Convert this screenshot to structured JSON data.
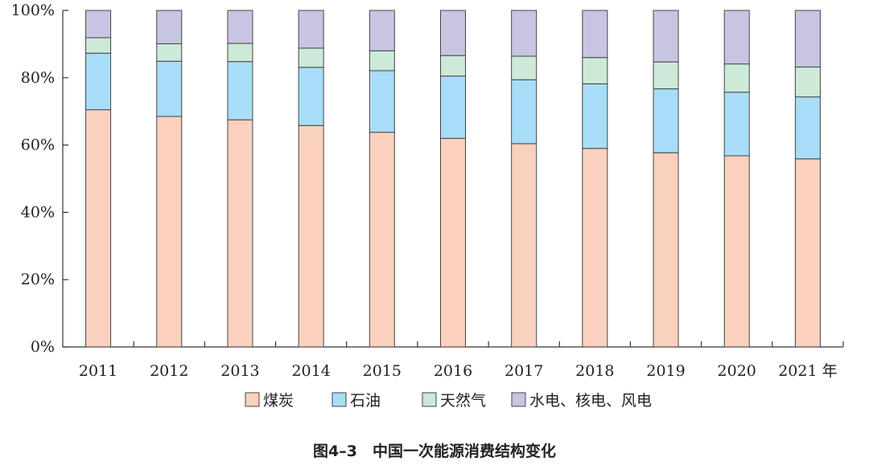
{
  "chart_data": {
    "type": "bar",
    "stacked": true,
    "percent_stacked": true,
    "categories": [
      "2011",
      "2012",
      "2013",
      "2014",
      "2015",
      "2016",
      "2017",
      "2018",
      "2019",
      "2020",
      "2021 年"
    ],
    "series": [
      {
        "name": "煤炭",
        "values": [
          70.5,
          68.5,
          67.5,
          65.8,
          63.8,
          62.0,
          60.4,
          59.0,
          57.7,
          56.8,
          55.9
        ],
        "color": "#fad1bf"
      },
      {
        "name": "石油",
        "values": [
          16.8,
          16.4,
          17.3,
          17.3,
          18.3,
          18.5,
          19.0,
          19.2,
          19.0,
          18.9,
          18.4
        ],
        "color": "#a8ddf8"
      },
      {
        "name": "天然气",
        "values": [
          4.6,
          5.2,
          5.4,
          5.7,
          5.9,
          6.1,
          7.0,
          7.8,
          8.0,
          8.4,
          8.9
        ],
        "color": "#cde9d8"
      },
      {
        "name": "水电、核电、风电",
        "values": [
          8.1,
          9.9,
          9.8,
          11.2,
          12.0,
          13.4,
          13.6,
          14.0,
          15.3,
          15.9,
          16.8
        ],
        "color": "#c8c5e3"
      }
    ],
    "y_ticks": [
      "0%",
      "20%",
      "40%",
      "60%",
      "80%",
      "100%"
    ],
    "ylim": [
      0,
      100
    ],
    "grid": false,
    "legend_position": "bottom-center",
    "caption": "图4–3　中国一次能源消费结构变化"
  }
}
